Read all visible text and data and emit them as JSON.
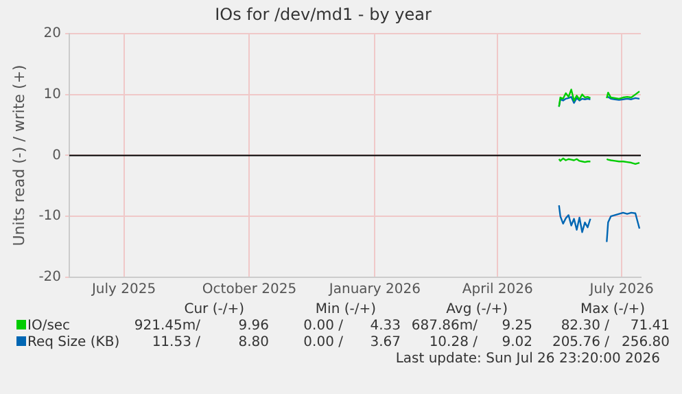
{
  "chart_data": {
    "type": "line",
    "title": "IOs for /dev/md1 - by year",
    "ylabel": "Units read (-) / write (+)",
    "xlim": [
      "2025-05-22",
      "2026-07-15"
    ],
    "xticks": [
      {
        "value": "2025-07-01",
        "label": "July 2025"
      },
      {
        "value": "2025-10-01",
        "label": "October 2025"
      },
      {
        "value": "2026-01-01",
        "label": "January 2026"
      },
      {
        "value": "2026-04-01",
        "label": "April 2026"
      },
      {
        "value": "2026-07-01",
        "label": "July 2026"
      }
    ],
    "ylim": [
      -20,
      20
    ],
    "yticks": [
      -20,
      -10,
      0,
      10,
      20
    ],
    "grid": true,
    "legend": "bottom",
    "marker": "none",
    "line_style": "solid",
    "ref_lines": [
      {
        "axis": "y",
        "value": 0,
        "color": "#000000"
      }
    ],
    "x": [
      "2026-05-16",
      "2026-05-17",
      "2026-05-19",
      "2026-05-21",
      "2026-05-23",
      "2026-05-25",
      "2026-05-27",
      "2026-05-29",
      "2026-05-31",
      "2026-06-02",
      "2026-06-04",
      "2026-06-06",
      "2026-06-08",
      "2026-06-14",
      "2026-06-20",
      "2026-06-21",
      "2026-06-23",
      "2026-06-26",
      "2026-06-29",
      "2026-07-02",
      "2026-07-05",
      "2026-07-08",
      "2026-07-11",
      "2026-07-14"
    ],
    "series": [
      {
        "name": "IO/sec",
        "color": "#00cc00",
        "values": [
          8.0,
          9.5,
          9.3,
          10.2,
          9.6,
          10.8,
          9.0,
          9.8,
          9.2,
          10.0,
          9.5,
          9.6,
          9.4,
          null,
          9.4,
          10.3,
          9.5,
          9.4,
          9.3,
          9.5,
          9.6,
          9.5,
          10.0,
          10.5
        ]
      },
      {
        "color": "#00cc00",
        "values": [
          -0.6,
          -0.9,
          -0.5,
          -0.8,
          -0.6,
          -0.7,
          -0.8,
          -0.6,
          -0.9,
          -1.0,
          -1.1,
          -1.0,
          -1.0,
          null,
          -0.6,
          -0.7,
          -0.8,
          -0.9,
          -1.0,
          -1.0,
          -1.1,
          -1.2,
          -1.4,
          -1.2
        ]
      },
      {
        "name": "Req Size (KB)",
        "color": "#0066b3",
        "values": [
          8.0,
          9.2,
          9.0,
          9.3,
          9.4,
          9.6,
          8.6,
          9.4,
          9.0,
          9.3,
          9.2,
          9.3,
          9.2,
          null,
          9.6,
          9.6,
          9.3,
          9.2,
          9.1,
          9.2,
          9.3,
          9.2,
          9.4,
          9.3
        ]
      },
      {
        "color": "#0066b3",
        "values": [
          -8.2,
          -10.0,
          -11.2,
          -10.3,
          -9.8,
          -11.5,
          -10.4,
          -12.2,
          -10.2,
          -12.6,
          -11.0,
          -11.8,
          -10.4,
          null,
          -14.2,
          -11.0,
          -10.0,
          -9.8,
          -9.6,
          -9.4,
          -9.6,
          -9.4,
          -9.5,
          -12.0
        ]
      }
    ],
    "annotations": [
      "Cur (-/+)",
      "Min (-/+)",
      "Avg (-/+)",
      "Max (-/+)",
      "921.45m/",
      "9.96",
      "0.00 /",
      "4.33",
      "687.86m/",
      "9.25",
      "82.30 /",
      "71.41",
      "11.53 /",
      "8.80",
      "0.00 /",
      "3.67",
      "10.28 /",
      "9.02",
      "205.76 /",
      "256.80",
      "Last update: Sun Jul 26 23:20:00 2026"
    ]
  }
}
